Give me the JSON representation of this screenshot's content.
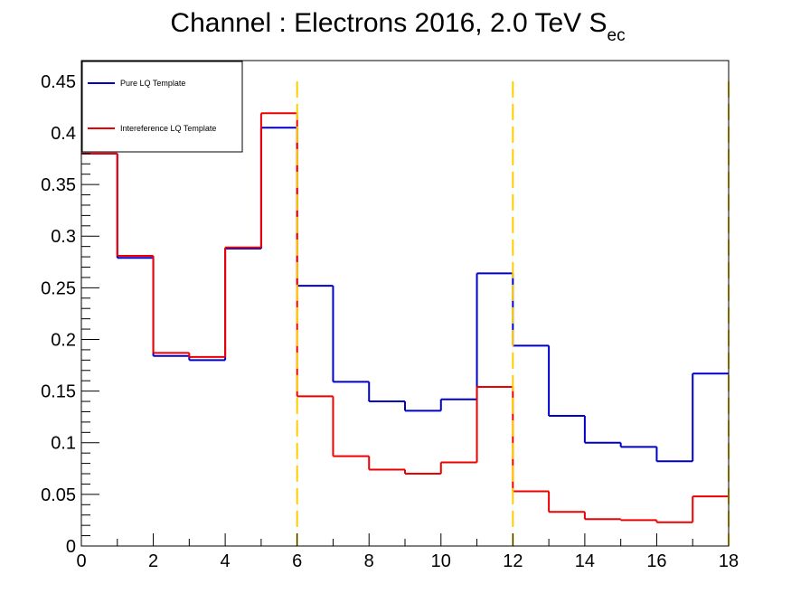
{
  "chart_data": {
    "type": "line",
    "title_main": "Channel : Electrons 2016, 2.0 TeV S",
    "title_sub": "ec",
    "xlim": [
      0,
      18
    ],
    "ylim": [
      0,
      0.47
    ],
    "x_ticks": [
      0,
      2,
      4,
      6,
      8,
      10,
      12,
      14,
      16,
      18
    ],
    "x_tick_labels": [
      "0",
      "2",
      "4",
      "6",
      "8",
      "10",
      "12",
      "14",
      "16",
      "18"
    ],
    "y_ticks": [
      0,
      0.05,
      0.1,
      0.15,
      0.2,
      0.25,
      0.3,
      0.35,
      0.4,
      0.45
    ],
    "y_tick_labels": [
      "0",
      "0.05",
      "0.1",
      "0.15",
      "0.2",
      "0.25",
      "0.3",
      "0.35",
      "0.4",
      "0.45"
    ],
    "bin_edges": [
      0,
      1,
      2,
      3,
      4,
      5,
      6,
      7,
      8,
      9,
      10,
      11,
      12,
      13,
      14,
      15,
      16,
      17,
      18
    ],
    "series": [
      {
        "name": "Pure LQ Template",
        "color": "#0000cc",
        "values": [
          0.38,
          0.279,
          0.184,
          0.18,
          0.288,
          0.405,
          0.252,
          0.159,
          0.14,
          0.131,
          0.142,
          0.264,
          0.194,
          0.126,
          0.1,
          0.096,
          0.082,
          0.167
        ]
      },
      {
        "name": "Intereference LQ Template",
        "color": "#ee0000",
        "values": [
          0.38,
          0.281,
          0.187,
          0.183,
          0.289,
          0.419,
          0.145,
          0.087,
          0.074,
          0.07,
          0.081,
          0.154,
          0.053,
          0.033,
          0.026,
          0.025,
          0.023,
          0.048
        ]
      }
    ],
    "vlines": [
      {
        "x": 6,
        "color": "#ffcc00"
      },
      {
        "x": 12,
        "color": "#ffcc00"
      },
      {
        "x": 18,
        "color": "#ffcc00"
      }
    ],
    "vline_top": 0.45,
    "legend": {
      "placement": "top-left",
      "entries": [
        "Pure LQ Template",
        "Intereference LQ Template"
      ]
    },
    "grid": false
  }
}
